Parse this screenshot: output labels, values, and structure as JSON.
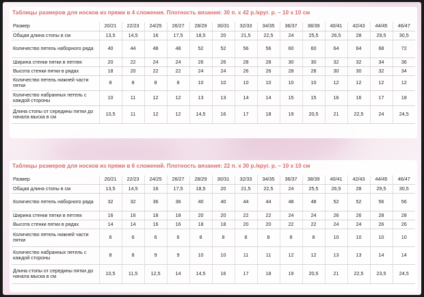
{
  "table1": {
    "title": "Таблицы размеров для носков из пряжи в 4 сложения. Плотность вязания: 30 п. х 42 р./круг. р. – 10 х 10 см",
    "header_label": "Размер",
    "sizes": [
      "20/21",
      "22/23",
      "24/25",
      "26/27",
      "28/29",
      "30/31",
      "32/33",
      "34/35",
      "36/37",
      "38/39",
      "40/41",
      "42/43",
      "44/45",
      "46/47"
    ],
    "rows": [
      {
        "label": "Общая длина стопы в см",
        "values": [
          "13,5",
          "14,5",
          "16",
          "17,5",
          "18,5",
          "20",
          "21,5",
          "22,5",
          "24",
          "25,5",
          "26,5",
          "28",
          "29,5",
          "30,5"
        ]
      },
      {
        "label": "Количество петель наборного ряда",
        "values": [
          "40",
          "44",
          "48",
          "48",
          "52",
          "52",
          "56",
          "56",
          "60",
          "60",
          "64",
          "64",
          "68",
          "72"
        ]
      },
      {
        "label": "Ширина стенки пятки в петлях",
        "values": [
          "20",
          "22",
          "24",
          "24",
          "26",
          "26",
          "28",
          "28",
          "30",
          "30",
          "32",
          "32",
          "34",
          "36"
        ]
      },
      {
        "label": "Высота стенки пятки в рядах",
        "values": [
          "18",
          "20",
          "22",
          "22",
          "24",
          "24",
          "26",
          "26",
          "28",
          "28",
          "30",
          "30",
          "32",
          "34"
        ]
      },
      {
        "label": "Количество петель нижней части пятки",
        "values": [
          "8",
          "8",
          "8",
          "8",
          "10",
          "10",
          "10",
          "10",
          "10",
          "10",
          "12",
          "12",
          "12",
          "12"
        ]
      },
      {
        "label": "Количество набранных петель с каждой стороны",
        "values": [
          "10",
          "11",
          "12",
          "12",
          "13",
          "13",
          "14",
          "14",
          "15",
          "15",
          "16",
          "16",
          "17",
          "18"
        ]
      },
      {
        "label": "Длина стопы от середины пятки до начала мыска в см",
        "values": [
          "10,5",
          "11",
          "12",
          "12",
          "14,5",
          "16",
          "17",
          "18",
          "19",
          "20,5",
          "21",
          "22,5",
          "24",
          "24,5"
        ]
      }
    ]
  },
  "table2": {
    "title": "Таблицы размеров для носков из пряжи в 6 сложений. Плотность вязания: 22 п. х 30 р./круг. р. – 10 х 10 см",
    "header_label": "Размер",
    "sizes": [
      "20/21",
      "22/23",
      "24/25",
      "26/27",
      "28/29",
      "30/31",
      "32/33",
      "34/35",
      "36/37",
      "38/39",
      "40/41",
      "42/43",
      "44/45",
      "46/47"
    ],
    "rows": [
      {
        "label": "Общая длина стопы в см",
        "values": [
          "13,5",
          "14,5",
          "16",
          "17,5",
          "18,5",
          "20",
          "21,5",
          "22,5",
          "24",
          "25,5",
          "26,5",
          "28",
          "29,5",
          "30,5"
        ]
      },
      {
        "label": "Количество петель наборного ряда",
        "values": [
          "32",
          "32",
          "36",
          "36",
          "40",
          "40",
          "44",
          "44",
          "48",
          "48",
          "52",
          "52",
          "56",
          "56"
        ]
      },
      {
        "label": "Ширина стенки пятки в петлях",
        "values": [
          "16",
          "16",
          "18",
          "18",
          "20",
          "20",
          "22",
          "22",
          "24",
          "24",
          "26",
          "26",
          "28",
          "28"
        ]
      },
      {
        "label": "Высота стенки пятки в рядах",
        "values": [
          "14",
          "14",
          "16",
          "16",
          "18",
          "18",
          "20",
          "20",
          "22",
          "22",
          "24",
          "24",
          "26",
          "26"
        ]
      },
      {
        "label": "Количество петель нижней части пятки",
        "values": [
          "6",
          "6",
          "6",
          "6",
          "8",
          "8",
          "8",
          "8",
          "8",
          "8",
          "10",
          "10",
          "10",
          "10"
        ]
      },
      {
        "label": "Количество набранных петель с каждой стороны",
        "values": [
          "8",
          "8",
          "9",
          "9",
          "10",
          "10",
          "11",
          "11",
          "12",
          "12",
          "13",
          "13",
          "14",
          "14"
        ]
      },
      {
        "label": "Длина стопы от середины пятки до начала мыска в см",
        "values": [
          "10,5",
          "11,5",
          "12,5",
          "14",
          "14,5",
          "16",
          "17",
          "18",
          "19",
          "20,5",
          "21",
          "22,5",
          "23,5",
          "24,5"
        ]
      }
    ]
  }
}
